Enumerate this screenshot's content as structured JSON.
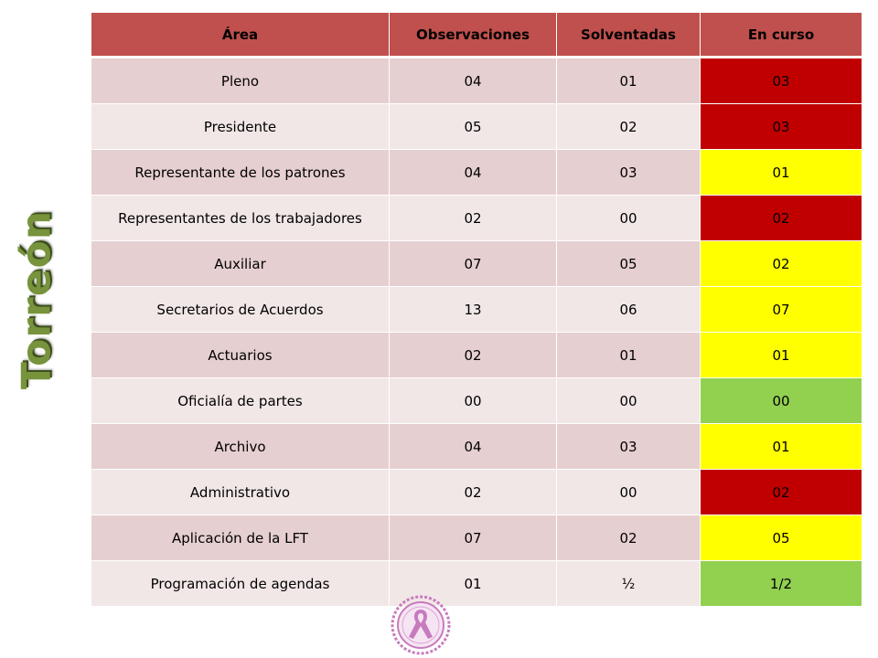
{
  "side_title": "Torreón",
  "colors": {
    "header": "#c0504d",
    "row_odd": "#e6cfd0",
    "row_even": "#f2e7e7",
    "status_red": "#c00000",
    "status_yellow": "#ffff00",
    "status_green": "#92d050",
    "side_title": "#77933c",
    "seal": "#c77bbd"
  },
  "seal_icon": "awareness-ribbon-seal",
  "table": {
    "headers": [
      "Área",
      "Observaciones",
      "Solventadas",
      "En curso"
    ],
    "rows": [
      {
        "area": "Pleno",
        "observaciones": "04",
        "solventadas": "01",
        "en_curso": "03",
        "status": "red"
      },
      {
        "area": "Presidente",
        "observaciones": "05",
        "solventadas": "02",
        "en_curso": "03",
        "status": "red"
      },
      {
        "area": "Representante  de los patrones",
        "observaciones": "04",
        "solventadas": "03",
        "en_curso": "01",
        "status": "yellow"
      },
      {
        "area": "Representantes  de los trabajadores",
        "observaciones": "02",
        "solventadas": "00",
        "en_curso": "02",
        "status": "red"
      },
      {
        "area": "Auxiliar",
        "observaciones": "07",
        "solventadas": "05",
        "en_curso": "02",
        "status": "yellow"
      },
      {
        "area": "Secretarios de Acuerdos",
        "observaciones": "13",
        "solventadas": "06",
        "en_curso": "07",
        "status": "yellow"
      },
      {
        "area": "Actuarios",
        "observaciones": "02",
        "solventadas": "01",
        "en_curso": "01",
        "status": "yellow"
      },
      {
        "area": "Oficialía de partes",
        "observaciones": "00",
        "solventadas": "00",
        "en_curso": "00",
        "status": "green"
      },
      {
        "area": "Archivo",
        "observaciones": "04",
        "solventadas": "03",
        "en_curso": "01",
        "status": "yellow"
      },
      {
        "area": "Administrativo",
        "observaciones": "02",
        "solventadas": "00",
        "en_curso": "02",
        "status": "red"
      },
      {
        "area": "Aplicación de la LFT",
        "observaciones": "07",
        "solventadas": "02",
        "en_curso": "05",
        "status": "yellow"
      },
      {
        "area": "Programación de agendas",
        "observaciones": "01",
        "solventadas": "½",
        "en_curso": "1/2",
        "status": "green"
      }
    ]
  }
}
